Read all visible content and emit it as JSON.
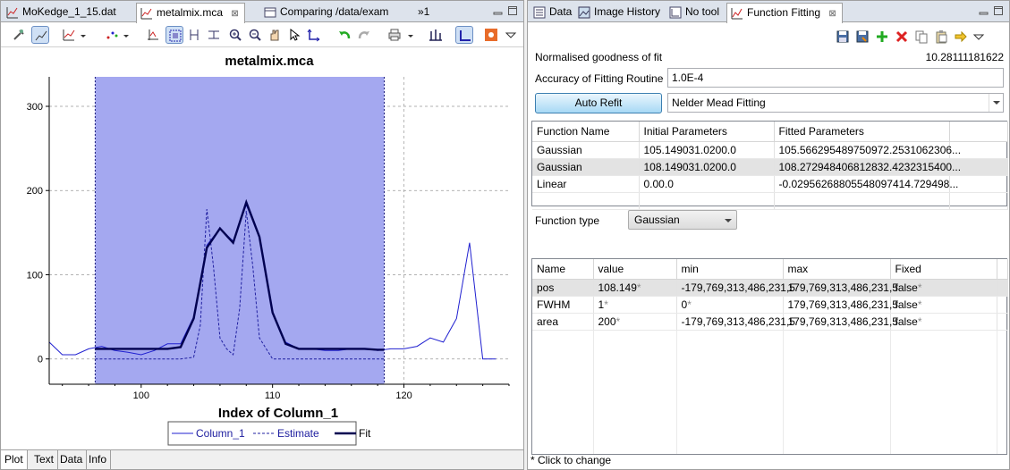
{
  "left": {
    "tabs": [
      {
        "label": "MoKedge_1_15.dat",
        "icon": "plot-icon"
      },
      {
        "label": "metalmix.mca",
        "icon": "plot-icon",
        "close": "⊠"
      },
      {
        "label": "Comparing /data/exam",
        "icon": "compare-icon"
      }
    ],
    "overflow_label": "»1",
    "bottom_tabs": [
      "Plot",
      "Text",
      "Data",
      "Info"
    ]
  },
  "chart_data": {
    "type": "line",
    "title": "metalmix.mca",
    "xlabel": "Index of Column_1",
    "ylabel": "",
    "xlim": [
      93,
      128
    ],
    "ylim": [
      -30,
      335
    ],
    "xticks": [
      100,
      110,
      120
    ],
    "yticks": [
      0,
      100,
      200,
      300
    ],
    "grid": true,
    "selection_region": [
      96.5,
      118.5
    ],
    "legend_position": "bottom",
    "series": [
      {
        "name": "Column_1",
        "style": "solid",
        "color": "#2020d0",
        "x": [
          93,
          94,
          95,
          96,
          97,
          98,
          99,
          100,
          101,
          102,
          103,
          104,
          105,
          106,
          107,
          108,
          109,
          110,
          111,
          112,
          113,
          114,
          115,
          116,
          117,
          118,
          119,
          120,
          121,
          122,
          123,
          124,
          125,
          126,
          127
        ],
        "y": [
          20,
          5,
          5,
          12,
          15,
          10,
          8,
          5,
          10,
          18,
          18,
          50,
          135,
          155,
          140,
          183,
          145,
          55,
          20,
          12,
          12,
          10,
          10,
          12,
          12,
          10,
          12,
          12,
          15,
          25,
          20,
          48,
          138,
          0,
          0
        ]
      },
      {
        "name": "Estimate",
        "style": "dashed",
        "color": "#2020a0",
        "x": [
          96.5,
          97,
          98,
          99,
          100,
          101,
          102,
          103,
          104,
          104.5,
          105,
          105.5,
          106,
          106.5,
          107,
          107.5,
          108,
          108.5,
          109,
          110,
          111,
          112,
          113,
          114,
          115,
          116,
          117,
          118,
          118.5
        ],
        "y": [
          0,
          0,
          0,
          0,
          0,
          0,
          0,
          0,
          2,
          40,
          178,
          110,
          25,
          12,
          5,
          60,
          176,
          110,
          25,
          0,
          0,
          0,
          0,
          0,
          0,
          0,
          0,
          0,
          0
        ]
      },
      {
        "name": "Fit",
        "style": "solid-bold",
        "color": "#000050",
        "x": [
          96.5,
          97,
          98,
          99,
          100,
          101,
          102,
          103,
          104,
          105,
          106,
          107,
          108,
          109,
          110,
          111,
          112,
          113,
          114,
          115,
          116,
          117,
          118,
          118.5
        ],
        "y": [
          12,
          12,
          12,
          12,
          12,
          12,
          12,
          14,
          48,
          132,
          155,
          138,
          186,
          145,
          55,
          18,
          12,
          12,
          12,
          12,
          12,
          12,
          11,
          11
        ]
      }
    ]
  },
  "right": {
    "tabs": [
      {
        "label": "Data",
        "icon": "data-icon"
      },
      {
        "label": "Image History",
        "icon": "image-history-icon"
      },
      {
        "label": "No tool",
        "icon": "no-tool-icon"
      },
      {
        "label": "Function Fitting",
        "icon": "fitting-icon",
        "close": "⊠"
      }
    ],
    "goodness_label": "Normalised goodness of fit",
    "goodness_value": "10.28111181622",
    "accuracy_label": "Accuracy of Fitting Routine",
    "accuracy_value": "1.0E-4",
    "refit_label": "Auto Refit",
    "algorithm": "Nelder Mead Fitting",
    "functions_table": {
      "headers": [
        "Function Name",
        "Initial Parameters",
        "Fitted Parameters"
      ],
      "rows": [
        [
          "Gaussian",
          "105.149031.0200.0",
          "105.566295489750972.2531062306..."
        ],
        [
          "Gaussian",
          "108.149031.0200.0",
          "108.272948406812832.4232315400..."
        ],
        [
          "Linear",
          "0.00.0",
          "-0.02956268805548097414.729498..."
        ]
      ]
    },
    "function_type_label": "Function type",
    "function_type_value": "Gaussian",
    "params_table": {
      "headers": [
        "Name",
        "value",
        "min",
        "max",
        "Fixed"
      ],
      "rows": [
        [
          "pos",
          "108.149*",
          "-179,769,313,486,231,5",
          "179,769,313,486,231,5",
          "false*"
        ],
        [
          "FWHM",
          "1*",
          "0*",
          "179,769,313,486,231,5",
          "false*"
        ],
        [
          "area",
          "200*",
          "-179,769,313,486,231,5",
          "179,769,313,486,231,5",
          "false*"
        ]
      ]
    },
    "status_text": "* Click to change"
  }
}
